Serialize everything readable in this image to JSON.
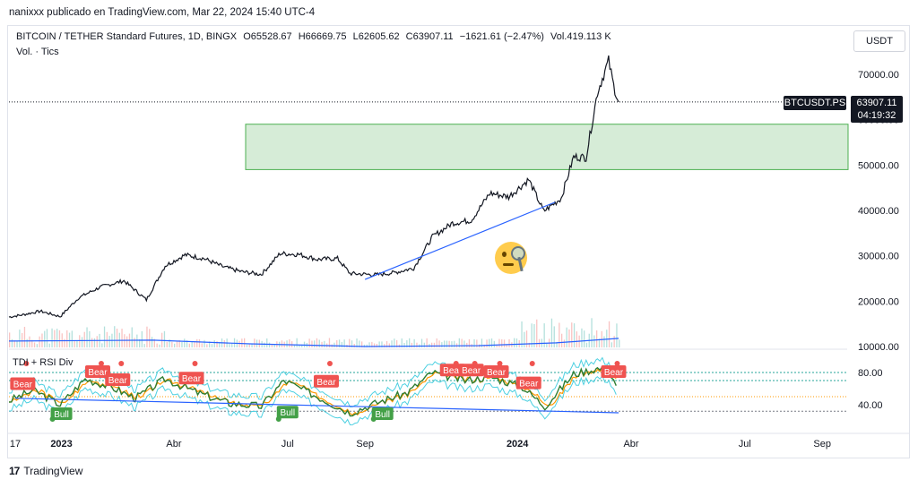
{
  "header": {
    "author_line": "nanixxx publicado en TradingView.com, Mar 22, 2024 15:40 UTC-4"
  },
  "legend": {
    "symbol": "BITCOIN / TETHER Standard Futures, 1D, BINGX",
    "open": "O65528.67",
    "high": "H66669.75",
    "low": "L62605.62",
    "close": "C63907.11",
    "change": "−1621.61 (−2.47%)",
    "volume": "Vol.419.113 K",
    "volume_label": "Vol. · Tics",
    "indicator": "TDI + RSI Div"
  },
  "currency_button": "USDT",
  "price_badge": {
    "symbol": "BTCUSDT.PS",
    "price": "63907.11",
    "countdown": "04:19:32"
  },
  "footer": {
    "brand": "TradingView"
  },
  "colors": {
    "up": "#26a69a",
    "down": "#ef5350",
    "zone": "#c8e6c9",
    "zone_border": "#4caf50",
    "trend": "#2962ff",
    "ma": "#2962ff",
    "bear": "#ef5350",
    "bull": "#43a047"
  },
  "chart_data": {
    "type": "line",
    "price_ticks": [
      "70000.00",
      "60000.00",
      "50000.00",
      "40000.00",
      "30000.00",
      "20000.00",
      "10000.00"
    ],
    "price_tick_values": [
      70000,
      60000,
      50000,
      40000,
      30000,
      20000,
      10000
    ],
    "rsi_ticks": [
      "80.00",
      "40.00"
    ],
    "rsi_tick_values": [
      80,
      40
    ],
    "x_ticks": [
      "17",
      "2023",
      "Abr",
      "Jul",
      "Sep",
      "2024",
      "Abr",
      "Jul",
      "Sep"
    ],
    "x_tick_dates": [
      "2022-11-25",
      "2023-01-01",
      "2023-04-01",
      "2023-07-01",
      "2023-09-01",
      "2024-01-01",
      "2024-04-01",
      "2024-07-01",
      "2024-09-01"
    ],
    "price_series": [
      [
        "2022-11-20",
        16500
      ],
      [
        "2022-12-01",
        17000
      ],
      [
        "2022-12-15",
        17800
      ],
      [
        "2022-12-31",
        16600
      ],
      [
        "2023-01-15",
        20800
      ],
      [
        "2023-02-01",
        23100
      ],
      [
        "2023-02-20",
        24500
      ],
      [
        "2023-03-10",
        20300
      ],
      [
        "2023-03-25",
        27800
      ],
      [
        "2023-04-10",
        30200
      ],
      [
        "2023-04-25",
        29400
      ],
      [
        "2023-05-10",
        27600
      ],
      [
        "2023-05-25",
        26500
      ],
      [
        "2023-06-10",
        25900
      ],
      [
        "2023-06-25",
        30500
      ],
      [
        "2023-07-10",
        30300
      ],
      [
        "2023-07-25",
        29200
      ],
      [
        "2023-08-10",
        29400
      ],
      [
        "2023-08-20",
        26100
      ],
      [
        "2023-09-10",
        25800
      ],
      [
        "2023-09-25",
        26300
      ],
      [
        "2023-10-10",
        27300
      ],
      [
        "2023-10-25",
        34200
      ],
      [
        "2023-11-10",
        37200
      ],
      [
        "2023-11-25",
        37800
      ],
      [
        "2023-12-10",
        43800
      ],
      [
        "2023-12-25",
        43000
      ],
      [
        "2024-01-10",
        46800
      ],
      [
        "2024-01-22",
        39800
      ],
      [
        "2024-02-05",
        42700
      ],
      [
        "2024-02-15",
        51800
      ],
      [
        "2024-02-25",
        51700
      ],
      [
        "2024-03-05",
        66000
      ],
      [
        "2024-03-14",
        73000
      ],
      [
        "2024-03-18",
        67500
      ],
      [
        "2024-03-22",
        63907
      ]
    ],
    "demand_zone": {
      "from": "2022-11-20",
      "to": "2025-01-15",
      "low": 49000,
      "high": 59000
    },
    "trendline": [
      [
        "2023-09-01",
        24800
      ],
      [
        "2024-01-31",
        41800
      ]
    ],
    "rsi_trendline": [
      [
        "2022-11-20",
        48
      ],
      [
        "2024-03-20",
        30
      ]
    ],
    "rsi_series": [
      [
        "2022-11-20",
        45
      ],
      [
        "2022-12-10",
        58
      ],
      [
        "2022-12-31",
        40
      ],
      [
        "2023-01-20",
        72
      ],
      [
        "2023-02-10",
        62
      ],
      [
        "2023-03-01",
        48
      ],
      [
        "2023-03-25",
        72
      ],
      [
        "2023-04-20",
        55
      ],
      [
        "2023-05-15",
        42
      ],
      [
        "2023-06-10",
        38
      ],
      [
        "2023-06-28",
        70
      ],
      [
        "2023-07-25",
        50
      ],
      [
        "2023-08-20",
        30
      ],
      [
        "2023-09-15",
        45
      ],
      [
        "2023-10-05",
        55
      ],
      [
        "2023-10-25",
        80
      ],
      [
        "2023-11-20",
        70
      ],
      [
        "2023-12-10",
        75
      ],
      [
        "2024-01-05",
        62
      ],
      [
        "2024-01-23",
        38
      ],
      [
        "2024-02-15",
        78
      ],
      [
        "2024-03-05",
        85
      ],
      [
        "2024-03-14",
        82
      ],
      [
        "2024-03-22",
        55
      ]
    ],
    "volume_ma": [
      [
        "2022-11-20",
        11200
      ],
      [
        "2023-03-15",
        11400
      ],
      [
        "2023-06-01",
        10600
      ],
      [
        "2023-09-01",
        10000
      ],
      [
        "2023-12-01",
        10200
      ],
      [
        "2024-02-01",
        10800
      ],
      [
        "2024-03-22",
        11800
      ]
    ],
    "bear_labels": [
      {
        "date": "2022-12-01",
        "rsi": 65,
        "text": "Bear"
      },
      {
        "date": "2023-01-30",
        "rsi": 80,
        "text": "Bear"
      },
      {
        "date": "2023-02-15",
        "rsi": 70,
        "text": "Bear"
      },
      {
        "date": "2023-04-15",
        "rsi": 72,
        "text": "Bear"
      },
      {
        "date": "2023-08-01",
        "rsi": 68,
        "text": "Bear"
      },
      {
        "date": "2023-11-10",
        "rsi": 82,
        "text": "Bear"
      },
      {
        "date": "2023-11-25",
        "rsi": 82,
        "text": "Bear"
      },
      {
        "date": "2023-12-15",
        "rsi": 80,
        "text": "Bear"
      },
      {
        "date": "2024-01-10",
        "rsi": 66,
        "text": "Bear"
      },
      {
        "date": "2024-03-18",
        "rsi": 80,
        "text": "Bear"
      }
    ],
    "bull_labels": [
      {
        "date": "2023-01-01",
        "rsi": 30,
        "text": "Bull"
      },
      {
        "date": "2023-07-01",
        "rsi": 32,
        "text": "Bull"
      },
      {
        "date": "2023-09-15",
        "rsi": 30,
        "text": "Bull"
      }
    ]
  }
}
